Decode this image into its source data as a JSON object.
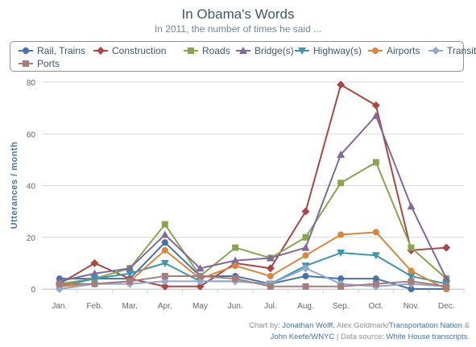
{
  "title": "In Obama's Words",
  "subtitle": "In 2011, the number of times he said ...",
  "credits": {
    "prefix": "Chart by: ",
    "author1": "Jonathan Wolff",
    "sep1": ", Alex Goldmark/",
    "org1": "Transportation Nation",
    "amp": " &",
    "author2": "John Keefe/WNYC",
    "sep2": " | Data source: ",
    "source": "White House transcripts",
    "end": "."
  },
  "chart_data": {
    "type": "line",
    "title": "In Obama's Words",
    "subtitle": "In 2011, the number of times he said ...",
    "xlabel": "",
    "ylabel": "Utterances / month",
    "ylim": [
      0,
      80
    ],
    "yticks": [
      0,
      20,
      40,
      60,
      80
    ],
    "grid": true,
    "legend": "top",
    "categories": [
      "Jan.",
      "Feb.",
      "Mar.",
      "Apr.",
      "May",
      "Jun.",
      "Jul.",
      "Aug.",
      "Sep.",
      "Oct.",
      "Nov.",
      "Dec."
    ],
    "series": [
      {
        "name": "Rail, Trains",
        "color": "#4572a7",
        "marker": "circle",
        "values": [
          4,
          4,
          4,
          18,
          5,
          5,
          2,
          5,
          4,
          4,
          0,
          0
        ]
      },
      {
        "name": "Construction",
        "color": "#aa4643",
        "marker": "diamond",
        "values": [
          2,
          10,
          4,
          1,
          1,
          10,
          8,
          30,
          79,
          71,
          15,
          16
        ]
      },
      {
        "name": "Roads",
        "color": "#89a54e",
        "marker": "square",
        "values": [
          2,
          4,
          8,
          25,
          5,
          16,
          12,
          20,
          41,
          49,
          16,
          4
        ]
      },
      {
        "name": "Bridge(s)",
        "color": "#80699b",
        "marker": "triangle",
        "values": [
          3,
          6,
          8,
          21,
          8,
          11,
          12,
          16,
          52,
          67,
          32,
          4
        ]
      },
      {
        "name": "Highway(s)",
        "color": "#3d96ae",
        "marker": "triangle-down",
        "values": [
          1,
          4,
          6,
          10,
          3,
          3,
          2,
          9,
          14,
          13,
          5,
          2
        ]
      },
      {
        "name": "Airports",
        "color": "#db843d",
        "marker": "circle",
        "values": [
          1,
          2,
          3,
          15,
          4,
          9,
          5,
          13,
          21,
          22,
          7,
          0
        ]
      },
      {
        "name": "Transit",
        "color": "#92a8cd",
        "marker": "diamond",
        "values": [
          0,
          2,
          2,
          3,
          3,
          3,
          2,
          8,
          2,
          1,
          2,
          1
        ]
      },
      {
        "name": "Ports",
        "color": "#a47d7c",
        "marker": "square",
        "values": [
          2,
          2,
          3,
          5,
          5,
          4,
          1,
          1,
          1,
          2,
          3,
          1
        ]
      }
    ]
  }
}
